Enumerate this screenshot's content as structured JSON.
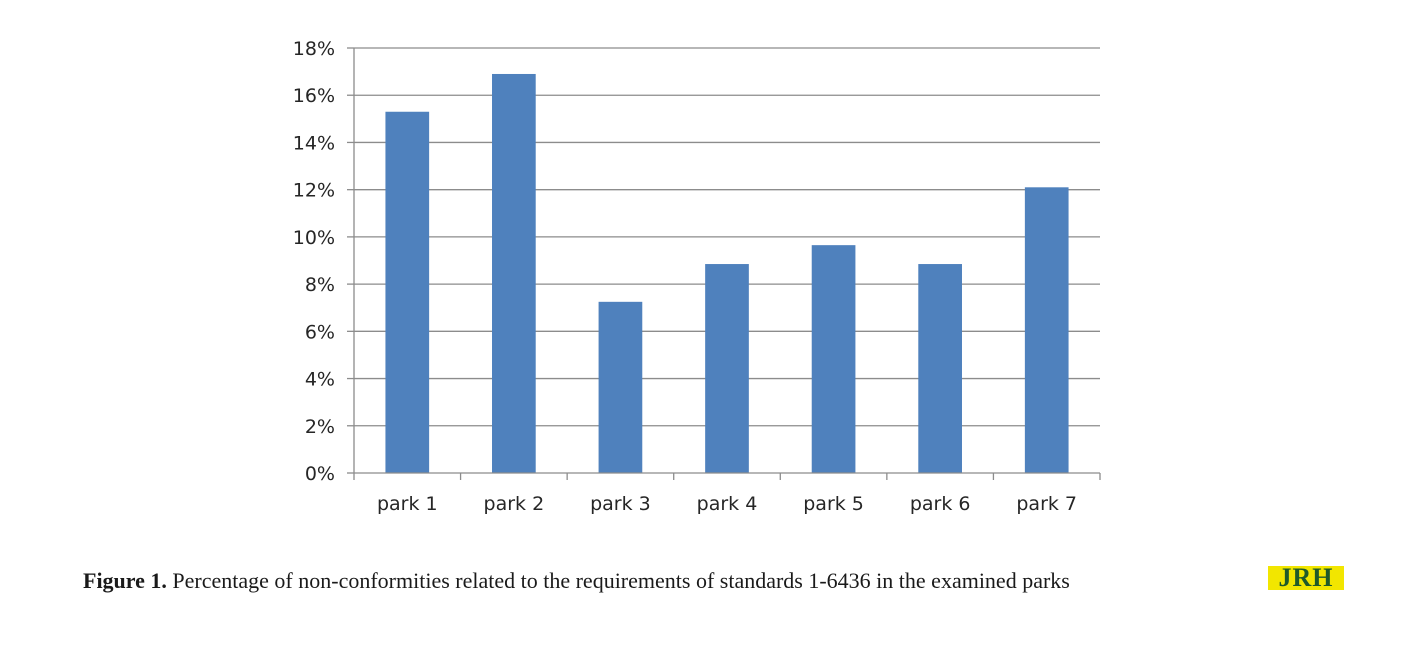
{
  "chart_data": {
    "type": "bar",
    "categories": [
      "park 1",
      "park 2",
      "park 3",
      "park 4",
      "park 5",
      "park 6",
      "park 7"
    ],
    "values": [
      15.3,
      16.9,
      7.25,
      8.85,
      9.65,
      8.85,
      12.1
    ],
    "y_ticks": [
      "0%",
      "2%",
      "4%",
      "6%",
      "8%",
      "10%",
      "12%",
      "14%",
      "16%",
      "18%"
    ],
    "ylim": [
      0,
      18
    ],
    "grid": true,
    "legend": "none",
    "bar_color": "#4f81bd",
    "title": "",
    "xlabel": "",
    "ylabel": ""
  },
  "caption": {
    "label": "Figure 1.",
    "text": " Percentage of non-conformities related to the requirements of standards 1-6436 in the examined parks"
  },
  "logo": {
    "text": "JRH",
    "background": "#f2e600",
    "text_color": "#1f5a2a"
  }
}
